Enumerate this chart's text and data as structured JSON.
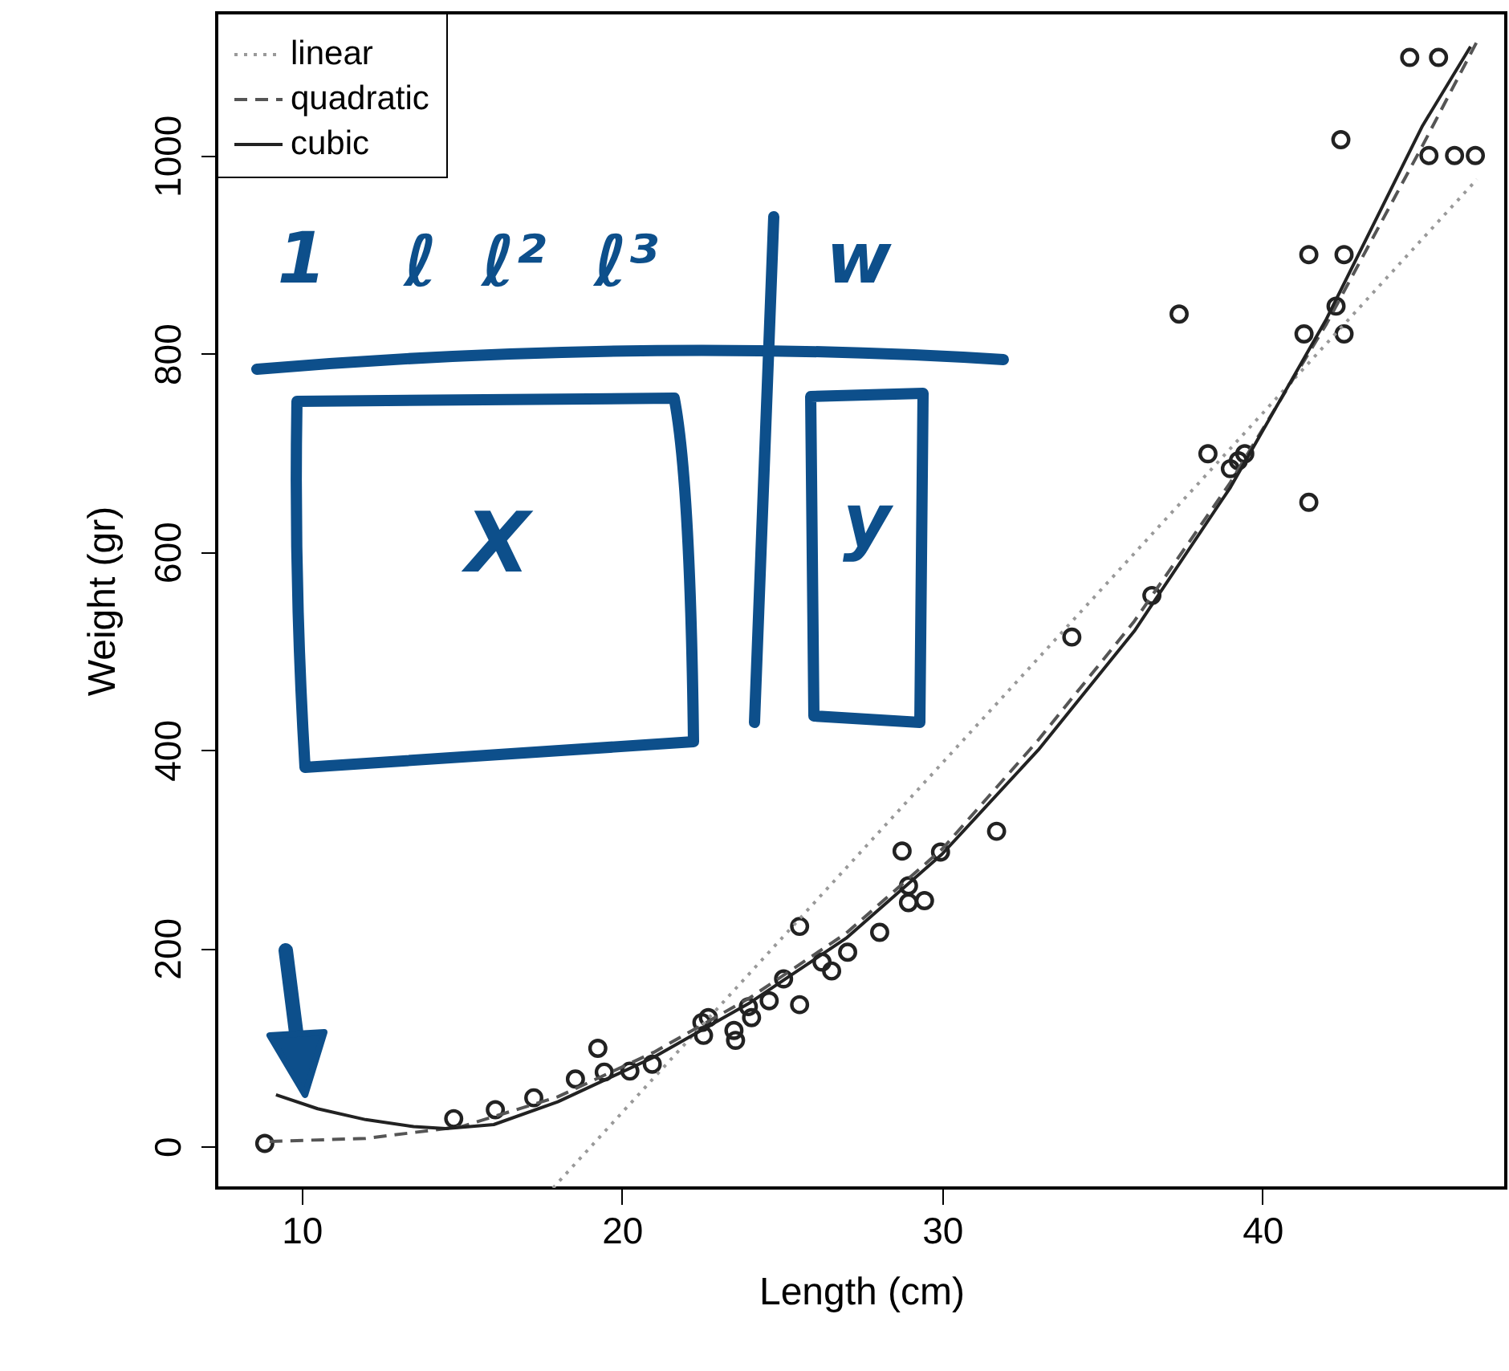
{
  "chart_data": {
    "type": "scatter",
    "xlabel": "Length (cm)",
    "ylabel": "Weight (gr)",
    "xlim": [
      7.35,
      47.6
    ],
    "ylim": [
      -42,
      1144
    ],
    "xticks": [
      10,
      20,
      30,
      40
    ],
    "yticks": [
      0,
      200,
      400,
      600,
      800,
      1000
    ],
    "grid": false,
    "legend": "top left",
    "marker": "none",
    "annotations": [
      "1",
      "ℓ",
      "ℓ²",
      "ℓ³",
      "w",
      "X",
      "y"
    ],
    "series": [
      {
        "color": "#222222",
        "marker": "circle",
        "x": [
          8.85,
          14.75,
          16.05,
          17.25,
          18.55,
          19.25,
          19.45,
          20.25,
          20.95,
          22.5,
          22.55,
          22.7,
          23.5,
          23.55,
          23.95,
          24.05,
          24.6,
          25.05,
          25.55,
          25.55,
          26.25,
          26.55,
          27.05,
          28.05,
          28.75,
          28.95,
          28.95,
          29.45,
          29.95,
          31.7,
          34.05,
          36.55,
          37.4,
          38.3,
          39.0,
          39.25,
          39.45,
          41.45,
          41.3,
          42.3,
          42.55,
          41.45,
          42.55,
          42.45,
          44.6,
          45.5,
          45.2,
          46.0,
          46.65
        ],
        "values": [
          3,
          28,
          37,
          49,
          68,
          99,
          75,
          76,
          83,
          125,
          112,
          130,
          117,
          107,
          141,
          130,
          147,
          169,
          222,
          143,
          186,
          177,
          196,
          216,
          298,
          263,
          246,
          248,
          297,
          318,
          514,
          556,
          840,
          699,
          684,
          692,
          699,
          650,
          820,
          848,
          820,
          900,
          900,
          1016,
          1099,
          1099,
          1000,
          1000,
          1000
        ]
      },
      {
        "type": "line",
        "name": "linear",
        "color": "#999999",
        "line_style": "dotted",
        "x": [
          17.85,
          46.7
        ],
        "values": [
          -42,
          976
        ]
      },
      {
        "type": "line",
        "name": "quadratic",
        "color": "#555555",
        "line_style": "dashed",
        "x": [
          9,
          12,
          15,
          18,
          21,
          24,
          27,
          30,
          33,
          36,
          39,
          42,
          45,
          46.7
        ],
        "values": [
          5,
          8,
          20,
          50,
          95,
          150,
          215,
          300,
          410,
          530,
          670,
          830,
          1010,
          1115
        ]
      },
      {
        "type": "line",
        "name": "cubic",
        "color": "#222222",
        "line_style": "solid",
        "x": [
          9.2,
          10.5,
          12,
          13.5,
          14.5,
          16,
          18,
          21,
          24,
          27,
          30,
          33,
          36,
          39,
          42,
          45,
          46.5
        ],
        "values": [
          52,
          38,
          27,
          20,
          18,
          22,
          45,
          90,
          145,
          210,
          295,
          400,
          520,
          665,
          835,
          1030,
          1110
        ]
      }
    ]
  }
}
